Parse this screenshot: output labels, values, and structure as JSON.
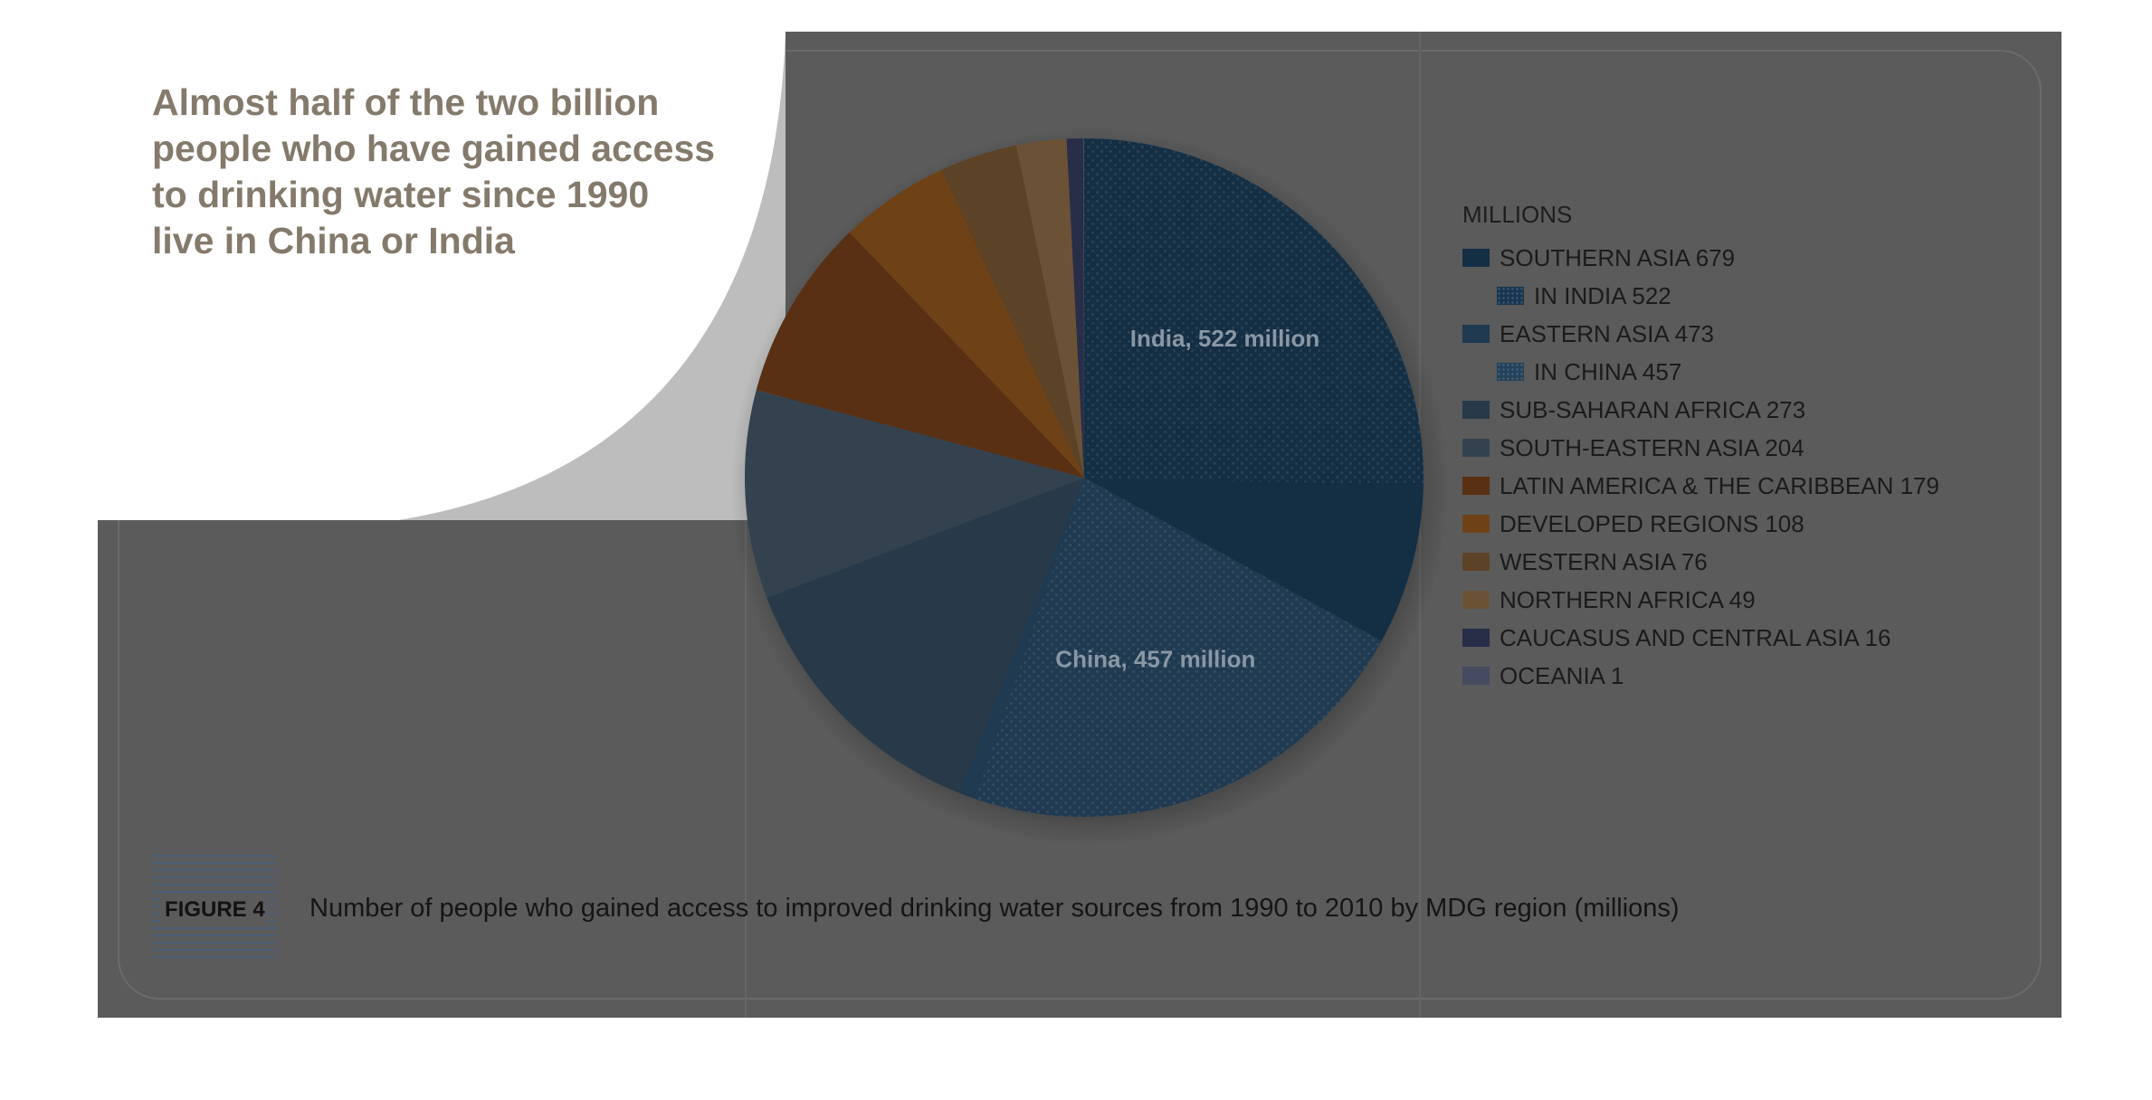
{
  "headline": [
    "Almost half of the two billion",
    "people who have gained access",
    "to drinking water since 1990",
    "live in China or India"
  ],
  "figure_label": "FIGURE 4",
  "caption": "Number of people who gained access to improved drinking water sources from 1990 to 2010 by MDG region (millions)",
  "chart_data": {
    "type": "pie",
    "title": "Number of people who gained access to improved drinking water sources from 1990 to 2010 by MDG region (millions)",
    "legend_title": "MILLIONS",
    "legend_position": "right",
    "slices": [
      {
        "label": "SOUTHERN ASIA",
        "value": 679,
        "color": "#142e44",
        "legend": "SOUTHERN ASIA 679"
      },
      {
        "label": "EASTERN ASIA",
        "value": 473,
        "color": "#1f3a51",
        "legend": "EASTERN ASIA 473"
      },
      {
        "label": "SUB-SAHARAN AFRICA",
        "value": 273,
        "color": "#283a4a",
        "legend": "SUB-SAHARAN AFRICA 273"
      },
      {
        "label": "SOUTH-EASTERN ASIA",
        "value": 204,
        "color": "#344250",
        "legend": "SOUTH-EASTERN ASIA 204"
      },
      {
        "label": "LATIN AMERICA & THE CARIBBEAN",
        "value": 179,
        "color": "#5a3014",
        "legend": "LATIN AMERICA & THE CARIBBEAN 179"
      },
      {
        "label": "DEVELOPED REGIONS",
        "value": 108,
        "color": "#6e4216",
        "legend": "DEVELOPED REGIONS 108"
      },
      {
        "label": "WESTERN ASIA",
        "value": 76,
        "color": "#5c4226",
        "legend": "WESTERN ASIA 76"
      },
      {
        "label": "NORTHERN AFRICA",
        "value": 49,
        "color": "#6b5236",
        "legend": "NORTHERN AFRICA 49"
      },
      {
        "label": "CAUCASUS AND CENTRAL ASIA",
        "value": 16,
        "color": "#282d48",
        "legend": "CAUCASUS AND CENTRAL ASIA 16"
      },
      {
        "label": "OCEANIA",
        "value": 1,
        "color": "#454a60",
        "legend": "OCEANIA 1"
      }
    ],
    "sub_slices": [
      {
        "parent": "SOUTHERN ASIA",
        "label": "IN INDIA",
        "value": 522,
        "legend": "IN INDIA 522",
        "annotation": "India, 522 million",
        "pattern": "dots",
        "swatch_color": "#17354f"
      },
      {
        "parent": "EASTERN ASIA",
        "label": "IN CHINA",
        "value": 457,
        "legend": "IN CHINA 457",
        "annotation": "China, 457 million",
        "pattern": "dots",
        "swatch_color": "#22415b"
      }
    ],
    "legend_order": [
      "SOUTHERN ASIA",
      "IN INDIA",
      "EASTERN ASIA",
      "IN CHINA",
      "SUB-SAHARAN AFRICA",
      "SOUTH-EASTERN ASIA",
      "LATIN AMERICA & THE CARIBBEAN",
      "DEVELOPED REGIONS",
      "WESTERN ASIA",
      "NORTHERN AFRICA",
      "CAUCASUS AND CENTRAL ASIA",
      "OCEANIA"
    ]
  }
}
